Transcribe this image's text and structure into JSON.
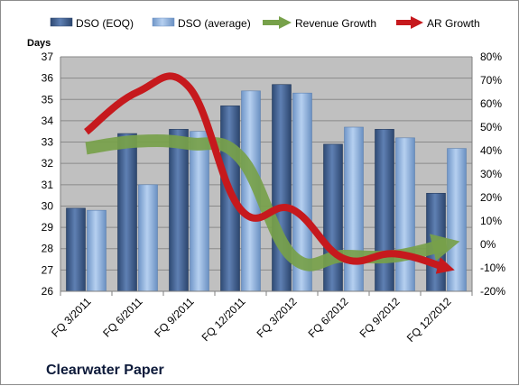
{
  "chart_data": {
    "type": "bar",
    "company_label": "Clearwater Paper",
    "y_left_title": "Days",
    "categories": [
      "FQ 3/2011",
      "FQ 6/2011",
      "FQ 9/2011",
      "FQ 12/2011",
      "FQ 3/2012",
      "FQ 6/2012",
      "FQ 9/2012",
      "FQ 12/2012"
    ],
    "y_left": {
      "min": 26,
      "max": 37,
      "step": 1,
      "ticks": [
        "26",
        "27",
        "28",
        "29",
        "30",
        "31",
        "32",
        "33",
        "34",
        "35",
        "36",
        "37"
      ]
    },
    "y_right": {
      "min": -20,
      "max": 80,
      "step": 10,
      "ticks": [
        "-20%",
        "-10%",
        "0%",
        "10%",
        "20%",
        "30%",
        "40%",
        "50%",
        "60%",
        "70%",
        "80%"
      ]
    },
    "series": [
      {
        "name": "DSO (EOQ)",
        "kind": "bar",
        "axis": "left",
        "color": "#4a6b9e",
        "values": [
          29.9,
          33.4,
          33.6,
          34.7,
          35.7,
          32.9,
          33.6,
          30.6
        ]
      },
      {
        "name": "DSO (average)",
        "kind": "bar",
        "axis": "left",
        "color": "#9cbde6",
        "values": [
          29.8,
          31.0,
          33.5,
          35.4,
          35.3,
          33.7,
          33.2,
          32.7
        ]
      },
      {
        "name": "Revenue Growth",
        "kind": "line",
        "axis": "right",
        "color": "#77a14a",
        "values": [
          41,
          44,
          43,
          37,
          -5,
          -5,
          -5,
          0
        ]
      },
      {
        "name": "AR Growth",
        "kind": "line",
        "axis": "right",
        "color": "#c6191d",
        "values": [
          48,
          65,
          67,
          15,
          15,
          -6,
          -4,
          -10
        ]
      }
    ],
    "plot_background": "#c0c0c0",
    "grid": true,
    "legend_position": "top"
  }
}
